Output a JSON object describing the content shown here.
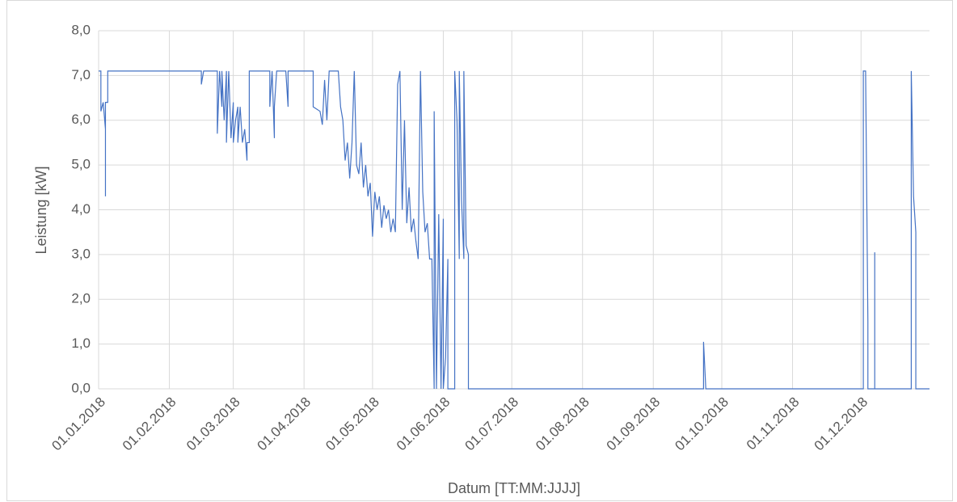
{
  "chart_data": {
    "type": "line",
    "y_label": "Leistung [kW]",
    "x_label": "Datum [TT:MM:JJJJ]",
    "color": "#4472c4",
    "grid": true,
    "xlim": [
      "01.01.2018",
      "31.12.2018"
    ],
    "xticks": [
      "01.01.2018",
      "01.02.2018",
      "01.03.2018",
      "01.04.2018",
      "01.05.2018",
      "01.06.2018",
      "01.07.2018",
      "01.08.2018",
      "01.09.2018",
      "01.10.2018",
      "01.11.2018",
      "01.12.2018"
    ],
    "ylim": [
      0,
      8
    ],
    "yticks": [
      {
        "value": 0,
        "label": "0,0"
      },
      {
        "value": 1,
        "label": "1,0"
      },
      {
        "value": 2,
        "label": "2,0"
      },
      {
        "value": 3,
        "label": "3,0"
      },
      {
        "value": 4,
        "label": "4,0"
      },
      {
        "value": 5,
        "label": "5,0"
      },
      {
        "value": 6,
        "label": "6,0"
      },
      {
        "value": 7,
        "label": "7,0"
      },
      {
        "value": 8,
        "label": "8,0"
      }
    ],
    "x": [
      "01.01.2018",
      "02.01.2018",
      "02.01.2018",
      "03.01.2018",
      "04.01.2018",
      "04.01.2018",
      "04.01.2018",
      "05.01.2018",
      "05.01.2018",
      "15.02.2018",
      "15.02.2018",
      "16.02.2018",
      "22.02.2018",
      "22.02.2018",
      "23.02.2018",
      "24.02.2018",
      "24.02.2018",
      "25.02.2018",
      "26.02.2018",
      "26.02.2018",
      "27.02.2018",
      "28.02.2018",
      "01.03.2018",
      "01.03.2018",
      "02.03.2018",
      "03.03.2018",
      "03.03.2018",
      "04.03.2018",
      "05.03.2018",
      "06.03.2018",
      "07.03.2018",
      "07.03.2018",
      "08.03.2018",
      "08.03.2018",
      "17.03.2018",
      "17.03.2018",
      "18.03.2018",
      "19.03.2018",
      "19.03.2018",
      "20.03.2018",
      "24.03.2018",
      "25.03.2018",
      "25.03.2018",
      "05.04.2018",
      "05.04.2018",
      "08.04.2018",
      "09.04.2018",
      "10.04.2018",
      "11.04.2018",
      "12.04.2018",
      "16.04.2018",
      "17.04.2018",
      "18.04.2018",
      "19.04.2018",
      "20.04.2018",
      "21.04.2018",
      "22.04.2018",
      "23.04.2018",
      "24.04.2018",
      "25.04.2018",
      "26.04.2018",
      "27.04.2018",
      "28.04.2018",
      "29.04.2018",
      "30.04.2018",
      "01.05.2018",
      "02.05.2018",
      "03.05.2018",
      "04.05.2018",
      "05.05.2018",
      "06.05.2018",
      "07.05.2018",
      "08.05.2018",
      "09.05.2018",
      "10.05.2018",
      "11.05.2018",
      "12.05.2018",
      "13.05.2018",
      "14.05.2018",
      "15.05.2018",
      "16.05.2018",
      "17.05.2018",
      "18.05.2018",
      "19.05.2018",
      "20.05.2018",
      "21.05.2018",
      "22.05.2018",
      "23.05.2018",
      "24.05.2018",
      "25.05.2018",
      "26.05.2018",
      "27.05.2018",
      "28.05.2018",
      "28.05.2018",
      "29.05.2018",
      "30.05.2018",
      "31.05.2018",
      "01.06.2018",
      "01.06.2018",
      "02.06.2018",
      "03.06.2018",
      "03.06.2018",
      "06.06.2018",
      "06.06.2018",
      "07.06.2018",
      "08.06.2018",
      "08.06.2018",
      "09.06.2018",
      "10.06.2018",
      "10.06.2018",
      "11.06.2018",
      "12.06.2018",
      "12.06.2018",
      "23.09.2018",
      "23.09.2018",
      "24.09.2018",
      "02.12.2018",
      "02.12.2018",
      "03.12.2018",
      "04.12.2018",
      "04.12.2018",
      "07.12.2018",
      "07.12.2018",
      "07.12.2018",
      "23.12.2018",
      "23.12.2018",
      "24.12.2018",
      "25.12.2018",
      "25.12.2018",
      "31.12.2018"
    ],
    "values": [
      7.1,
      7.1,
      6.2,
      6.4,
      5.8,
      4.3,
      6.4,
      6.4,
      7.1,
      7.1,
      6.8,
      7.1,
      7.1,
      5.7,
      7.1,
      6.3,
      7.1,
      6.0,
      7.1,
      5.5,
      7.1,
      5.6,
      6.4,
      5.5,
      6.0,
      6.3,
      5.5,
      6.3,
      5.5,
      5.8,
      5.1,
      5.5,
      5.5,
      7.1,
      7.1,
      6.3,
      7.1,
      5.6,
      6.3,
      7.1,
      7.1,
      6.3,
      7.1,
      7.1,
      6.3,
      6.2,
      5.9,
      6.9,
      6.0,
      7.1,
      7.1,
      6.3,
      6.0,
      5.1,
      5.5,
      4.7,
      5.5,
      7.1,
      5.0,
      4.8,
      5.5,
      4.5,
      5.0,
      4.3,
      4.6,
      3.4,
      4.4,
      4.0,
      4.3,
      3.6,
      4.1,
      3.8,
      4.0,
      3.5,
      3.8,
      3.5,
      6.8,
      7.1,
      4.0,
      6.0,
      3.7,
      4.5,
      3.5,
      3.8,
      3.3,
      2.9,
      7.1,
      4.4,
      3.5,
      3.7,
      2.9,
      2.9,
      0,
      6.2,
      0,
      3.9,
      0,
      3.8,
      0,
      0.7,
      2.9,
      0,
      0,
      7.1,
      6.0,
      2.9,
      7.1,
      4.2,
      2.9,
      7.1,
      3.2,
      3.0,
      0,
      0,
      1.05,
      0,
      0,
      7.1,
      7.1,
      1.5,
      0,
      0,
      3.05,
      0,
      0,
      7.1,
      4.3,
      3.5,
      0,
      0
    ]
  }
}
